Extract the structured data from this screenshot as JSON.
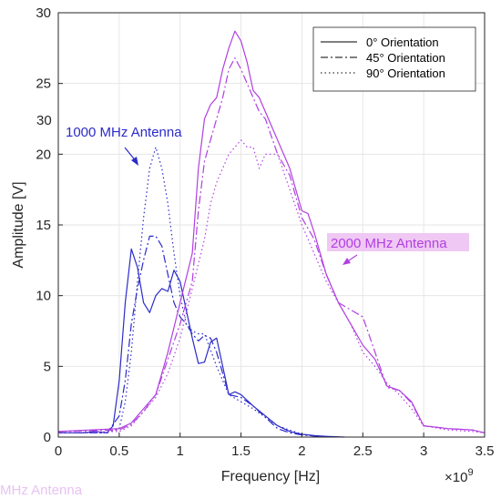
{
  "chart_data": {
    "type": "line",
    "xlabel": "Frequency [Hz]",
    "ylabel": "Amplitude [V]",
    "x_exponent_label": "×10",
    "x_exponent_power": "9",
    "xlim": [
      0,
      3.5
    ],
    "ylim": [
      0,
      30
    ],
    "x_scale": 1000000000,
    "xticks": [
      0,
      0.5,
      1,
      1.5,
      2,
      2.5,
      3,
      3.5
    ],
    "xtick_labels": [
      "0",
      "0.5",
      "1",
      "1.5",
      "2",
      "2.5",
      "3",
      "3.5"
    ],
    "yticks": [
      0,
      5,
      10,
      15,
      20,
      25,
      30
    ],
    "ytick_labels": [
      "0",
      "5",
      "10",
      "15",
      "20",
      "25",
      "30"
    ],
    "grid": true,
    "legend_position": "top-right",
    "colors": {
      "antenna_1000": "#2b2bc8",
      "antenna_2000": "#b040e0"
    },
    "legend": [
      {
        "label": "0° Orientation",
        "dash": "solid"
      },
      {
        "label": "45° Orientation",
        "dash": "dashdot"
      },
      {
        "label": "90° Orientation",
        "dash": "dotted"
      }
    ],
    "annotations": [
      {
        "text": "1000 MHz Antenna",
        "series_group": "antenna_1000"
      },
      {
        "text": "2000 MHz Antenna",
        "series_group": "antenna_2000"
      }
    ],
    "stray_texts": [
      {
        "text": "30"
      },
      {
        "text": "MHz Antenna"
      }
    ],
    "series": [
      {
        "group": "antenna_1000",
        "dash": "solid",
        "x": [
          0,
          0.2,
          0.3,
          0.4,
          0.45,
          0.5,
          0.55,
          0.6,
          0.65,
          0.7,
          0.75,
          0.8,
          0.85,
          0.9,
          0.95,
          1.0,
          1.05,
          1.1,
          1.15,
          1.2,
          1.25,
          1.3,
          1.4,
          1.45,
          1.5,
          1.6,
          1.7,
          1.8,
          1.9,
          2.0,
          2.1,
          2.2,
          2.35
        ],
        "y": [
          0.3,
          0.3,
          0.4,
          0.3,
          0.8,
          4.0,
          9.5,
          13.3,
          12.0,
          9.5,
          8.8,
          10.0,
          10.5,
          10.3,
          11.8,
          11.0,
          9.0,
          7.0,
          5.2,
          5.3,
          6.7,
          7.0,
          3.0,
          3.2,
          3.0,
          2.2,
          1.5,
          0.8,
          0.4,
          0.2,
          0.1,
          0.05,
          0
        ]
      },
      {
        "group": "antenna_1000",
        "dash": "dashdot",
        "x": [
          0,
          0.3,
          0.4,
          0.5,
          0.55,
          0.6,
          0.65,
          0.7,
          0.75,
          0.8,
          0.85,
          0.9,
          0.95,
          1.0,
          1.05,
          1.1,
          1.15,
          1.2,
          1.25,
          1.3,
          1.4,
          1.5,
          1.6,
          1.7,
          1.8,
          1.9,
          2.0,
          2.2
        ],
        "y": [
          0.3,
          0.3,
          0.3,
          1.5,
          4.0,
          8.0,
          10.5,
          12.5,
          14.2,
          14.2,
          13.5,
          11.5,
          9.5,
          8.5,
          8.0,
          7.3,
          6.8,
          7.2,
          7.0,
          6.0,
          3.0,
          2.8,
          2.2,
          1.4,
          0.6,
          0.3,
          0.15,
          0
        ]
      },
      {
        "group": "antenna_1000",
        "dash": "dotted",
        "x": [
          0,
          0.3,
          0.4,
          0.5,
          0.55,
          0.6,
          0.65,
          0.7,
          0.75,
          0.8,
          0.85,
          0.9,
          0.95,
          1.0,
          1.05,
          1.1,
          1.15,
          1.2,
          1.3,
          1.4,
          1.5,
          1.6,
          1.8,
          2.0,
          2.2
        ],
        "y": [
          0.3,
          0.3,
          0.3,
          0.6,
          2.5,
          6.0,
          11.0,
          15.5,
          19.0,
          20.5,
          19.0,
          16.5,
          13.0,
          10.0,
          8.0,
          7.5,
          7.3,
          7.3,
          5.0,
          3.0,
          2.5,
          2.0,
          0.8,
          0.2,
          0
        ]
      },
      {
        "group": "antenna_2000",
        "dash": "solid",
        "x": [
          0,
          0.5,
          0.6,
          0.7,
          0.8,
          0.9,
          1.0,
          1.1,
          1.15,
          1.2,
          1.25,
          1.3,
          1.35,
          1.4,
          1.45,
          1.5,
          1.55,
          1.6,
          1.65,
          1.7,
          1.8,
          1.9,
          2.0,
          2.05,
          2.1,
          2.2,
          2.3,
          2.4,
          2.5,
          2.6,
          2.7,
          2.8,
          2.9,
          3.0,
          3.2,
          3.4,
          3.5
        ],
        "y": [
          0.4,
          0.6,
          1.0,
          2.0,
          3.0,
          6.0,
          9.5,
          13.0,
          19.0,
          22.5,
          23.5,
          24.0,
          26.0,
          27.5,
          28.7,
          28.0,
          26.5,
          24.5,
          24.0,
          23.0,
          21.0,
          19.0,
          16.0,
          15.8,
          14.5,
          11.5,
          9.5,
          8.0,
          6.5,
          5.5,
          3.6,
          3.3,
          2.5,
          0.8,
          0.6,
          0.5,
          0.3
        ]
      },
      {
        "group": "antenna_2000",
        "dash": "dashdot",
        "x": [
          0,
          0.5,
          0.6,
          0.7,
          0.8,
          0.9,
          1.0,
          1.1,
          1.15,
          1.2,
          1.25,
          1.3,
          1.35,
          1.4,
          1.45,
          1.5,
          1.55,
          1.6,
          1.65,
          1.7,
          1.8,
          1.9,
          2.0,
          2.1,
          2.2,
          2.3,
          2.4,
          2.5,
          2.6,
          2.7,
          2.8,
          2.9,
          3.0,
          3.2,
          3.4,
          3.5
        ],
        "y": [
          0.4,
          0.5,
          0.9,
          1.8,
          3.0,
          5.5,
          8.0,
          11.0,
          16.0,
          19.5,
          21.0,
          22.5,
          24.0,
          26.0,
          26.8,
          26.0,
          25.0,
          24.0,
          23.0,
          22.5,
          20.0,
          18.5,
          15.5,
          14.0,
          11.5,
          9.5,
          9.0,
          8.5,
          6.0,
          3.5,
          3.3,
          2.4,
          0.8,
          0.6,
          0.5,
          0.3
        ]
      },
      {
        "group": "antenna_2000",
        "dash": "dotted",
        "x": [
          0,
          0.5,
          0.6,
          0.7,
          0.8,
          0.9,
          1.0,
          1.1,
          1.2,
          1.25,
          1.3,
          1.35,
          1.4,
          1.5,
          1.55,
          1.6,
          1.65,
          1.7,
          1.8,
          1.9,
          2.0,
          2.1,
          2.2,
          2.3,
          2.4,
          2.5,
          2.6,
          2.7,
          2.8,
          2.9,
          3.0,
          3.2,
          3.4,
          3.5
        ],
        "y": [
          0.3,
          0.4,
          0.8,
          1.8,
          2.8,
          4.5,
          7.0,
          10.5,
          14.0,
          16.5,
          18.0,
          19.0,
          20.0,
          21.0,
          20.5,
          20.5,
          19.0,
          20.0,
          20.0,
          17.5,
          15.0,
          13.0,
          11.0,
          9.5,
          8.0,
          6.0,
          5.0,
          3.8,
          3.0,
          2.0,
          0.8,
          0.5,
          0.4,
          0.3
        ]
      }
    ]
  }
}
